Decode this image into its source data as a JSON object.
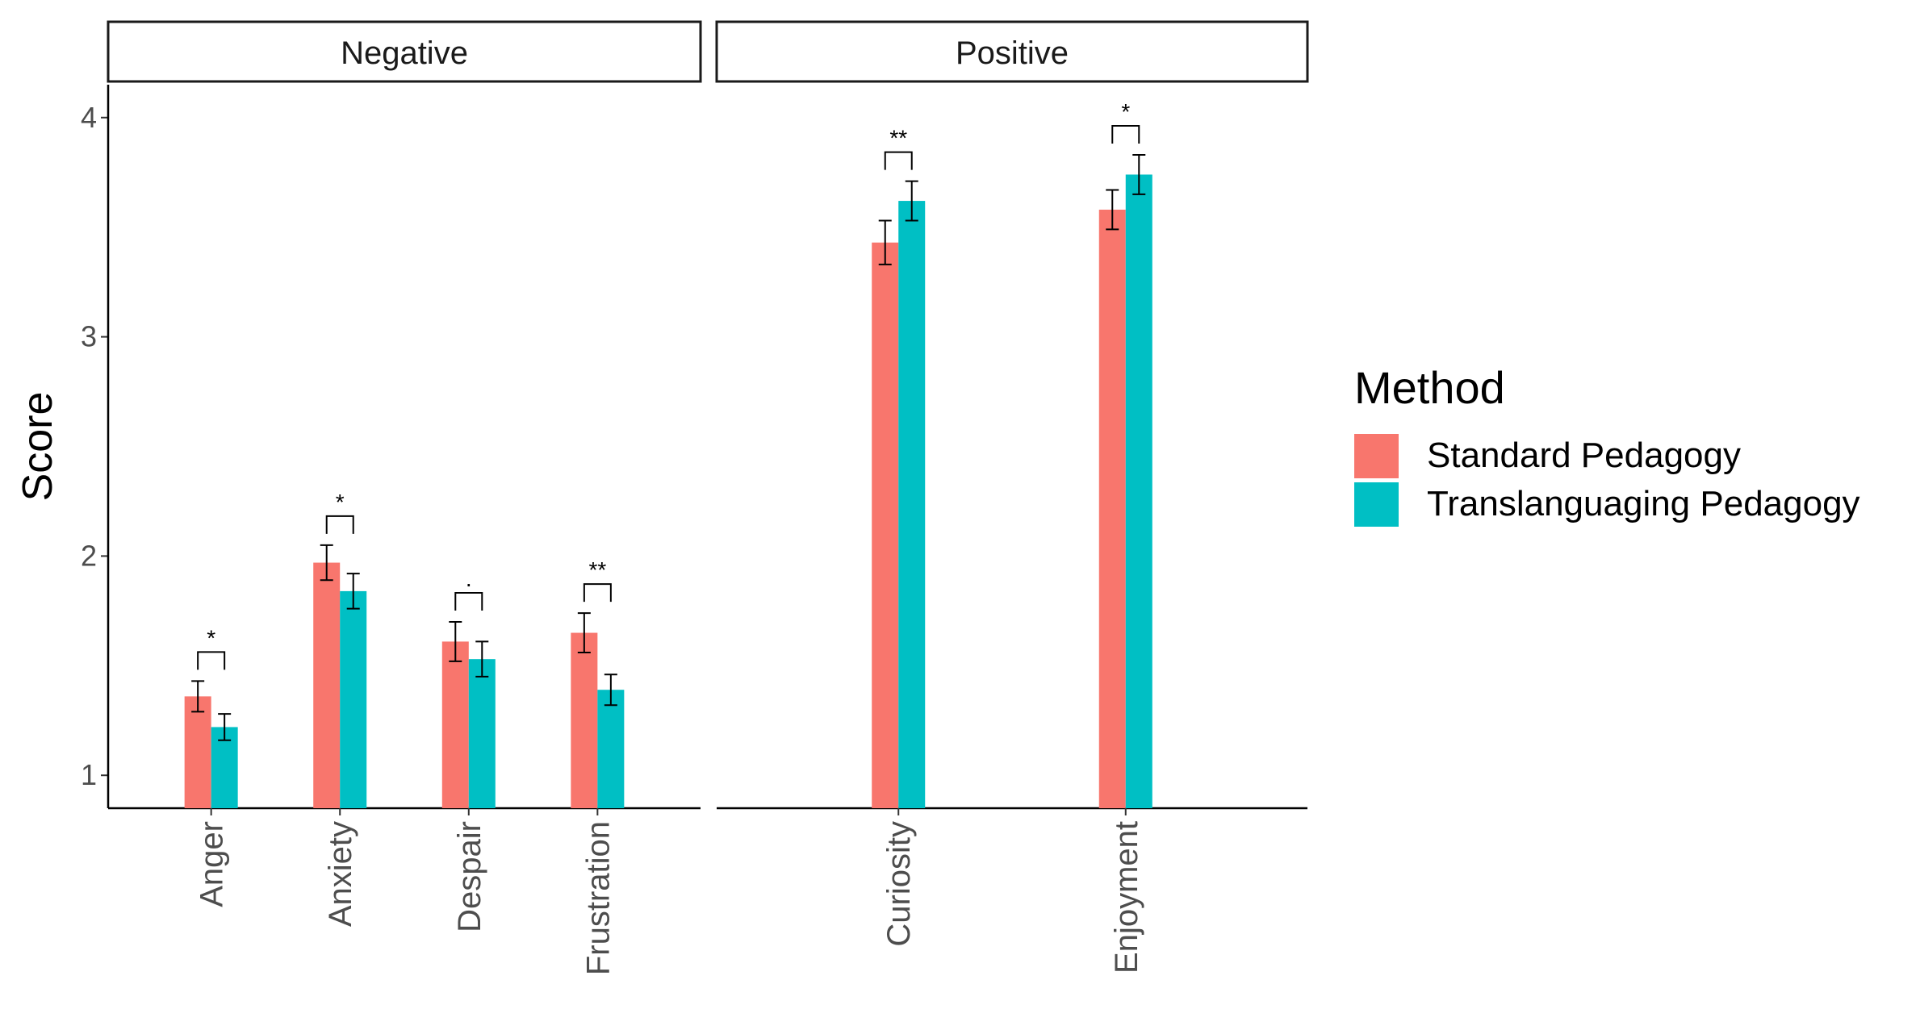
{
  "chart_data": {
    "type": "bar",
    "ylabel": "Score",
    "ylim": [
      0.85,
      4.15
    ],
    "yticks": [
      "1",
      "2",
      "3",
      "4"
    ],
    "legend": {
      "title": "Method",
      "position": "right"
    },
    "series": [
      {
        "name": "Standard Pedagogy",
        "color": "#F8766D"
      },
      {
        "name": "Translanguaging Pedagogy",
        "color": "#00BFC4"
      }
    ],
    "panels": [
      {
        "label": "Negative",
        "categories": [
          {
            "name": "Anger",
            "values": [
              1.36,
              1.22
            ],
            "errors": [
              0.07,
              0.06
            ],
            "significance": "*"
          },
          {
            "name": "Anxiety",
            "values": [
              1.97,
              1.84
            ],
            "errors": [
              0.08,
              0.08
            ],
            "significance": "*"
          },
          {
            "name": "Despair",
            "values": [
              1.61,
              1.53
            ],
            "errors": [
              0.09,
              0.08
            ],
            "significance": "."
          },
          {
            "name": "Frustration",
            "values": [
              1.65,
              1.39
            ],
            "errors": [
              0.09,
              0.07
            ],
            "significance": "**"
          }
        ]
      },
      {
        "label": "Positive",
        "categories": [
          {
            "name": "Curiosity",
            "values": [
              3.43,
              3.62
            ],
            "errors": [
              0.1,
              0.09
            ],
            "significance": "**"
          },
          {
            "name": "Enjoyment",
            "values": [
              3.58,
              3.74
            ],
            "errors": [
              0.09,
              0.09
            ],
            "significance": "*"
          }
        ]
      }
    ]
  }
}
